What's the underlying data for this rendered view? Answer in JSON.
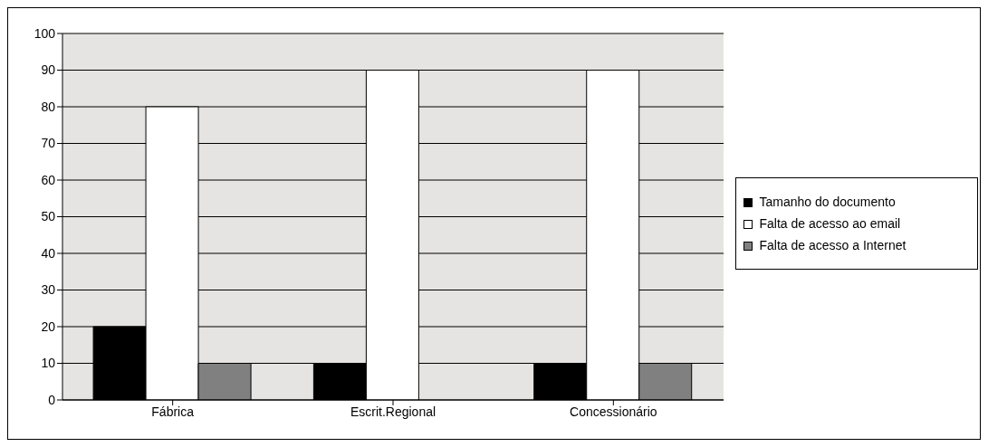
{
  "chart_data": {
    "type": "bar",
    "categories": [
      "Fábrica",
      "Escrit.Regional",
      "Concessionário"
    ],
    "series": [
      {
        "name": "Tamanho do documento",
        "color": "#000000",
        "values": [
          20,
          10,
          10
        ]
      },
      {
        "name": "Falta de acesso ao email",
        "color": "#ffffff",
        "values": [
          80,
          90,
          90
        ]
      },
      {
        "name": "Falta de acesso a Internet",
        "color": "#808080",
        "values": [
          10,
          0,
          10
        ]
      }
    ],
    "ylim": [
      0,
      100
    ],
    "yticks": [
      0,
      10,
      20,
      30,
      40,
      50,
      60,
      70,
      80,
      90,
      100
    ],
    "grid": "y",
    "legend": "right"
  }
}
